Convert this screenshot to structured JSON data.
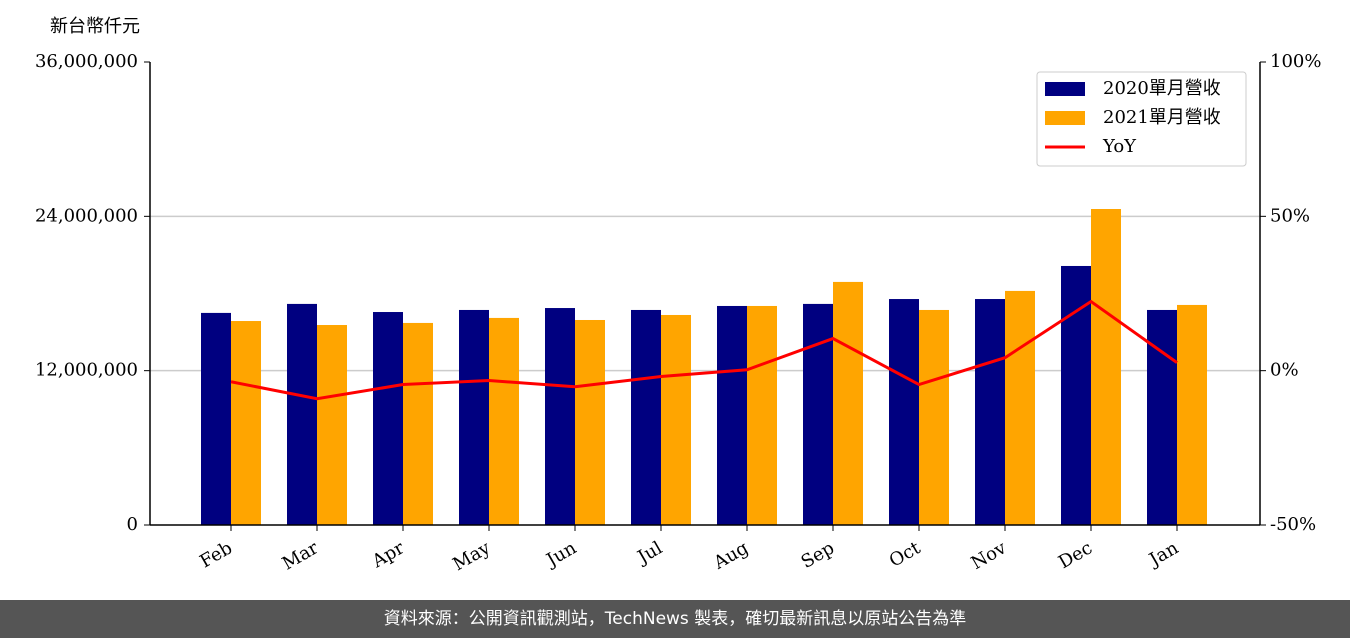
{
  "chart_data": {
    "type": "bar",
    "y_label": "新台幣仟元",
    "categories": [
      "Feb",
      "Mar",
      "Apr",
      "May",
      "Jun",
      "Jul",
      "Aug",
      "Sep",
      "Oct",
      "Nov",
      "Dec",
      "Jan"
    ],
    "series": [
      {
        "name": "2020單月營收",
        "color": "#000080",
        "values": [
          16490000,
          17190000,
          16560000,
          16720000,
          16870000,
          16720000,
          17030000,
          17190000,
          17570000,
          17570000,
          20140000,
          16720000
        ]
      },
      {
        "name": "2021單月營收",
        "color": "#ffa500",
        "values": [
          15860000,
          15550000,
          15710000,
          16100000,
          15940000,
          16330000,
          17030000,
          18900000,
          16720000,
          18200000,
          24570000,
          17110000
        ]
      },
      {
        "name": "YoY",
        "color": "#ff0000",
        "type": "line",
        "axis": "y2",
        "values": [
          -3.6,
          -9.1,
          -4.5,
          -3.2,
          -5.2,
          -1.9,
          0.3,
          10.4,
          -4.5,
          4.2,
          22.4,
          2.6
        ]
      }
    ],
    "ylim": [
      0,
      36000000
    ],
    "yticks": [
      0,
      {
        "value": 12000000,
        "label": "12,000,000"
      },
      {
        "value": 24000000,
        "label": "24,000,000"
      },
      {
        "value": 36000000,
        "label": "36,000,000"
      }
    ],
    "y2lim": [
      -50,
      100
    ],
    "y2ticks": [
      {
        "value": -50,
        "label": "-50%"
      },
      {
        "value": 0,
        "label": "0%"
      },
      {
        "value": 50,
        "label": "50%"
      },
      {
        "value": 100,
        "label": "100%"
      }
    ],
    "grid": true,
    "legend": "upper right"
  },
  "footer": "資料來源：公開資訊觀測站，TechNews 製表，確切最新訊息以原站公告為準"
}
